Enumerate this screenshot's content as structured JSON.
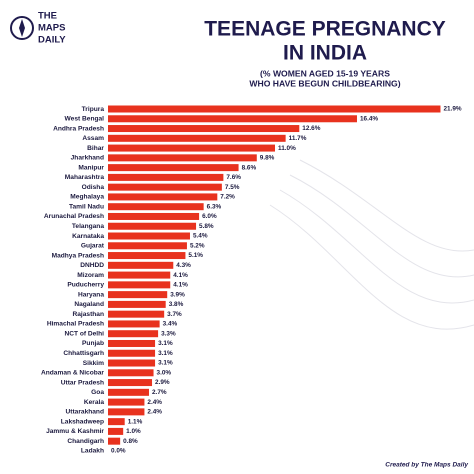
{
  "brand": [
    "THE",
    "MAPS",
    "DAILY"
  ],
  "credit": "Created by The Maps Daily",
  "chart_data": {
    "type": "bar",
    "orientation": "horizontal",
    "title": [
      "TEENAGE PREGNANCY",
      "IN INDIA"
    ],
    "subtitle": [
      "(% WOMEN AGED 15-19 YEARS",
      "WHO HAVE BEGUN CHILDBEARING)"
    ],
    "color": "#e8321e",
    "xlim": [
      0,
      22
    ],
    "categories": [
      "Tripura",
      "West Bengal",
      "Andhra Pradesh",
      "Assam",
      "Bihar",
      "Jharkhand",
      "Manipur",
      "Maharashtra",
      "Odisha",
      "Meghalaya",
      "Tamil Nadu",
      "Arunachal Pradesh",
      "Telangana",
      "Karnataka",
      "Gujarat",
      "Madhya Pradesh",
      "DNHDD",
      "Mizoram",
      "Puducherry",
      "Haryana",
      "Nagaland",
      "Rajasthan",
      "Himachal Pradesh",
      "NCT of Delhi",
      "Punjab",
      "Chhattisgarh",
      "Sikkim",
      "Andaman & Nicobar",
      "Uttar Pradesh",
      "Goa",
      "Kerala",
      "Uttarakhand",
      "Lakshadweep",
      "Jammu & Kashmir",
      "Chandigarh",
      "Ladakh"
    ],
    "values": [
      21.9,
      16.4,
      12.6,
      11.7,
      11.0,
      9.8,
      8.6,
      7.6,
      7.5,
      7.2,
      6.3,
      6.0,
      5.8,
      5.4,
      5.2,
      5.1,
      4.3,
      4.1,
      4.1,
      3.9,
      3.8,
      3.7,
      3.4,
      3.3,
      3.1,
      3.1,
      3.1,
      3.0,
      2.9,
      2.7,
      2.4,
      2.4,
      1.1,
      1.0,
      0.8,
      0.0
    ],
    "value_labels": [
      "21.9%",
      "16.4%",
      "12.6%",
      "11.7%",
      "11.0%",
      "9.8%",
      "8.6%",
      "7.6%",
      "7.5%",
      "7.2%",
      "6.3%",
      "6.0%",
      "5.8%",
      "5.4%",
      "5.2%",
      "5.1%",
      "4.3%",
      "4.1%",
      "4.1%",
      "3.9%",
      "3.8%",
      "3.7%",
      "3.4%",
      "3.3%",
      "3.1%",
      "3.1%",
      "3.1%",
      "3.0%",
      "2.9%",
      "2.7%",
      "2.4%",
      "2.4%",
      "1.1%",
      "1.0%",
      "0.8%",
      "0.0%"
    ]
  }
}
